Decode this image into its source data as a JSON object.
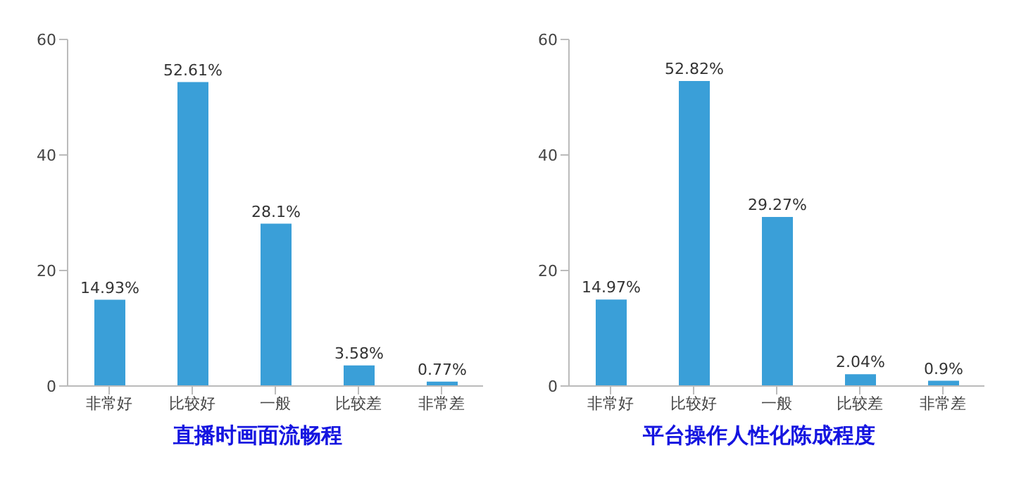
{
  "chart_data": [
    {
      "type": "bar",
      "title": "直播时画面流畅程",
      "categories": [
        "非常好",
        "比较好",
        "一般",
        "比较差",
        "非常差"
      ],
      "values": [
        14.93,
        52.61,
        28.1,
        3.58,
        0.77
      ],
      "value_labels": [
        "14.93%",
        "52.61%",
        "28.1%",
        "3.58%",
        "0.77%"
      ],
      "color": "#3a9fd8",
      "ylim": [
        0,
        60
      ],
      "yticks": [
        0,
        20,
        40,
        60
      ]
    },
    {
      "type": "bar",
      "title": "平台操作人性化陈成程度",
      "categories": [
        "非常好",
        "比较好",
        "一般",
        "比较差",
        "非常差"
      ],
      "values": [
        14.97,
        52.82,
        29.27,
        2.04,
        0.9
      ],
      "value_labels": [
        "14.97%",
        "52.82%",
        "29.27%",
        "2.04%",
        "0.9%"
      ],
      "color": "#3a9fd8",
      "ylim": [
        0,
        60
      ],
      "yticks": [
        0,
        20,
        40,
        60
      ]
    }
  ]
}
